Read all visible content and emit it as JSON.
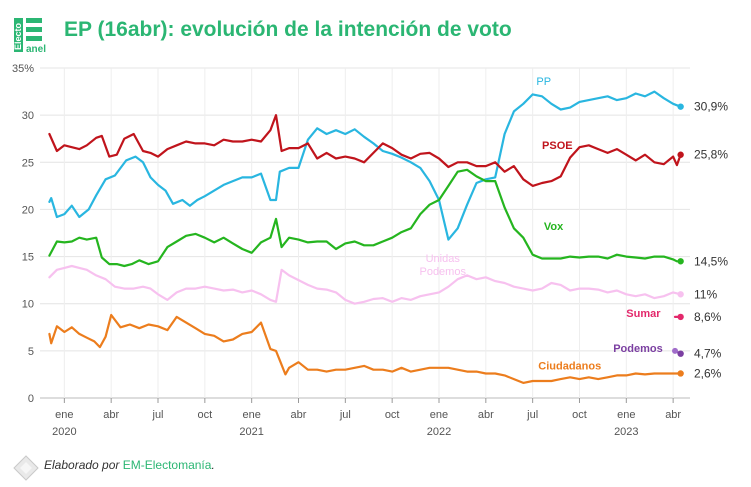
{
  "header": {
    "logo_text_1": "Electo",
    "logo_text_2": "anel",
    "title": "EP (16abr): evolución de la intención de voto"
  },
  "footer": {
    "prefix": "Elaborado por ",
    "source": "EM-Electomanía",
    "suffix": "."
  },
  "chart_data": {
    "type": "line",
    "title": "EP (16abr): evolución de la intención de voto",
    "xlabel": "",
    "ylabel": "",
    "x_range": [
      2019.87,
      2023.34
    ],
    "ylim": [
      0,
      35
    ],
    "y_ticks": [
      0,
      5,
      10,
      15,
      20,
      25,
      30,
      35
    ],
    "y_tick_labels": [
      "0",
      "5",
      "10",
      "15",
      "20",
      "25",
      "30",
      "35%"
    ],
    "x_ticks": [
      {
        "x": 2020.0,
        "label": "ene",
        "year": "2020"
      },
      {
        "x": 2020.25,
        "label": "abr",
        "year": ""
      },
      {
        "x": 2020.5,
        "label": "jul",
        "year": ""
      },
      {
        "x": 2020.75,
        "label": "oct",
        "year": ""
      },
      {
        "x": 2021.0,
        "label": "ene",
        "year": "2021"
      },
      {
        "x": 2021.25,
        "label": "abr",
        "year": ""
      },
      {
        "x": 2021.5,
        "label": "jul",
        "year": ""
      },
      {
        "x": 2021.75,
        "label": "oct",
        "year": ""
      },
      {
        "x": 2022.0,
        "label": "ene",
        "year": "2022"
      },
      {
        "x": 2022.25,
        "label": "abr",
        "year": ""
      },
      {
        "x": 2022.5,
        "label": "jul",
        "year": ""
      },
      {
        "x": 2022.75,
        "label": "oct",
        "year": ""
      },
      {
        "x": 2023.0,
        "label": "ene",
        "year": "2023"
      },
      {
        "x": 2023.25,
        "label": "abr",
        "year": ""
      }
    ],
    "grid": true,
    "series": [
      {
        "name": "PP",
        "label": "PP",
        "color": "#29b6e0",
        "final": "30,9%",
        "x": [
          2019.92,
          2019.93,
          2019.96,
          2020.0,
          2020.04,
          2020.08,
          2020.13,
          2020.17,
          2020.22,
          2020.27,
          2020.33,
          2020.38,
          2020.42,
          2020.46,
          2020.5,
          2020.54,
          2020.58,
          2020.63,
          2020.67,
          2020.71,
          2020.75,
          2020.8,
          2020.85,
          2020.9,
          2020.95,
          2021.0,
          2021.05,
          2021.1,
          2021.13,
          2021.15,
          2021.2,
          2021.25,
          2021.3,
          2021.35,
          2021.4,
          2021.45,
          2021.5,
          2021.55,
          2021.6,
          2021.65,
          2021.7,
          2021.75,
          2021.8,
          2021.85,
          2021.9,
          2021.95,
          2022.0,
          2022.05,
          2022.1,
          2022.15,
          2022.2,
          2022.25,
          2022.3,
          2022.35,
          2022.4,
          2022.45,
          2022.5,
          2022.55,
          2022.6,
          2022.65,
          2022.7,
          2022.75,
          2022.8,
          2022.85,
          2022.9,
          2022.95,
          2023.0,
          2023.05,
          2023.1,
          2023.15,
          2023.2,
          2023.25,
          2023.29
        ],
        "y": [
          20.8,
          21.2,
          19.2,
          19.5,
          20.4,
          19.2,
          20.0,
          21.5,
          23.2,
          23.6,
          25.2,
          25.6,
          25.0,
          23.4,
          22.6,
          22.0,
          20.6,
          21.0,
          20.4,
          21.0,
          21.4,
          22.0,
          22.6,
          23.0,
          23.4,
          23.4,
          23.8,
          21.0,
          21.0,
          24.0,
          24.4,
          24.4,
          27.4,
          28.6,
          28.0,
          28.4,
          28.0,
          28.5,
          27.7,
          27.0,
          26.2,
          25.9,
          25.5,
          25.0,
          24.4,
          23.0,
          21.0,
          16.8,
          18.0,
          20.5,
          22.8,
          23.2,
          23.4,
          28.0,
          30.4,
          31.2,
          32.2,
          32.0,
          31.2,
          30.6,
          30.8,
          31.4,
          31.6,
          31.8,
          32.0,
          31.6,
          31.8,
          32.3,
          32.0,
          32.5,
          31.8,
          31.2,
          30.9
        ]
      },
      {
        "name": "PSOE",
        "label": "PSOE",
        "color": "#c0141c",
        "final": "25,8%",
        "x": [
          2019.92,
          2019.96,
          2020.0,
          2020.04,
          2020.08,
          2020.12,
          2020.17,
          2020.2,
          2020.24,
          2020.28,
          2020.32,
          2020.37,
          2020.42,
          2020.46,
          2020.5,
          2020.55,
          2020.6,
          2020.65,
          2020.7,
          2020.75,
          2020.8,
          2020.85,
          2020.9,
          2020.95,
          2021.0,
          2021.05,
          2021.1,
          2021.13,
          2021.16,
          2021.2,
          2021.25,
          2021.3,
          2021.35,
          2021.4,
          2021.45,
          2021.5,
          2021.55,
          2021.6,
          2021.65,
          2021.7,
          2021.75,
          2021.8,
          2021.85,
          2021.9,
          2021.95,
          2022.0,
          2022.05,
          2022.1,
          2022.15,
          2022.2,
          2022.25,
          2022.3,
          2022.35,
          2022.4,
          2022.45,
          2022.5,
          2022.55,
          2022.6,
          2022.65,
          2022.7,
          2022.75,
          2022.8,
          2022.85,
          2022.9,
          2022.95,
          2023.0,
          2023.05,
          2023.1,
          2023.15,
          2023.2,
          2023.25,
          2023.27,
          2023.29
        ],
        "y": [
          28.0,
          26.2,
          26.8,
          26.6,
          26.4,
          26.8,
          27.6,
          27.8,
          25.6,
          25.8,
          27.5,
          28.0,
          26.2,
          26.0,
          25.6,
          26.4,
          26.8,
          27.2,
          27.0,
          27.0,
          26.8,
          27.4,
          27.2,
          27.2,
          27.4,
          27.2,
          28.4,
          30.0,
          26.2,
          26.5,
          26.5,
          27.0,
          25.4,
          26.0,
          25.4,
          25.6,
          25.4,
          25.0,
          26.0,
          27.0,
          26.5,
          25.8,
          25.4,
          25.9,
          26.0,
          25.4,
          24.5,
          25.0,
          25.0,
          24.6,
          24.6,
          25.0,
          24.0,
          24.6,
          23.2,
          22.5,
          22.8,
          23.0,
          23.5,
          25.5,
          26.6,
          26.8,
          26.4,
          26.0,
          26.4,
          25.8,
          25.2,
          25.8,
          25.0,
          24.8,
          25.6,
          24.7,
          25.8
        ]
      },
      {
        "name": "Vox",
        "label": "Vox",
        "color": "#25b51f",
        "final": "14,5%",
        "x": [
          2019.92,
          2019.96,
          2020.0,
          2020.04,
          2020.08,
          2020.12,
          2020.17,
          2020.2,
          2020.24,
          2020.28,
          2020.32,
          2020.36,
          2020.4,
          2020.45,
          2020.5,
          2020.55,
          2020.6,
          2020.65,
          2020.7,
          2020.75,
          2020.8,
          2020.85,
          2020.9,
          2020.95,
          2021.0,
          2021.05,
          2021.1,
          2021.13,
          2021.16,
          2021.2,
          2021.25,
          2021.3,
          2021.35,
          2021.4,
          2021.45,
          2021.5,
          2021.55,
          2021.6,
          2021.65,
          2021.7,
          2021.75,
          2021.8,
          2021.85,
          2021.9,
          2021.95,
          2022.0,
          2022.05,
          2022.1,
          2022.15,
          2022.2,
          2022.25,
          2022.3,
          2022.35,
          2022.4,
          2022.45,
          2022.5,
          2022.55,
          2022.6,
          2022.65,
          2022.7,
          2022.75,
          2022.8,
          2022.85,
          2022.9,
          2022.95,
          2023.0,
          2023.05,
          2023.1,
          2023.15,
          2023.2,
          2023.25,
          2023.27,
          2023.29
        ],
        "y": [
          15.1,
          16.6,
          16.5,
          16.6,
          17.0,
          16.8,
          17.0,
          14.9,
          14.2,
          14.2,
          14.0,
          14.2,
          14.6,
          14.2,
          14.5,
          16.0,
          16.6,
          17.2,
          17.4,
          17.0,
          16.5,
          17.0,
          16.4,
          15.8,
          15.4,
          16.5,
          17.0,
          19.0,
          16.0,
          17.0,
          16.8,
          16.5,
          16.6,
          16.6,
          15.8,
          16.4,
          16.6,
          16.2,
          16.2,
          16.6,
          17.0,
          17.6,
          18.0,
          19.5,
          20.5,
          21.0,
          22.5,
          24.0,
          24.2,
          23.5,
          23.0,
          23.0,
          20.2,
          18.0,
          17.0,
          15.2,
          14.8,
          14.8,
          14.8,
          15.0,
          14.9,
          15.0,
          15.0,
          14.8,
          15.2,
          15.0,
          14.9,
          14.8,
          15.0,
          15.0,
          14.7,
          14.5,
          14.5
        ]
      },
      {
        "name": "Unidas Podemos",
        "label": "Unidas\nPodemos",
        "color": "#f7c1ef",
        "final": "11%",
        "x": [
          2019.92,
          2019.96,
          2020.0,
          2020.04,
          2020.08,
          2020.12,
          2020.17,
          2020.22,
          2020.27,
          2020.32,
          2020.37,
          2020.42,
          2020.46,
          2020.5,
          2020.55,
          2020.6,
          2020.65,
          2020.7,
          2020.75,
          2020.8,
          2020.85,
          2020.9,
          2020.95,
          2021.0,
          2021.05,
          2021.1,
          2021.13,
          2021.16,
          2021.2,
          2021.25,
          2021.3,
          2021.35,
          2021.4,
          2021.45,
          2021.5,
          2021.55,
          2021.6,
          2021.65,
          2021.7,
          2021.75,
          2021.8,
          2021.85,
          2021.9,
          2021.95,
          2022.0,
          2022.05,
          2022.1,
          2022.15,
          2022.2,
          2022.25,
          2022.3,
          2022.35,
          2022.4,
          2022.45,
          2022.5,
          2022.55,
          2022.6,
          2022.65,
          2022.7,
          2022.75,
          2022.8,
          2022.85,
          2022.9,
          2022.95,
          2023.0,
          2023.05,
          2023.1,
          2023.15,
          2023.2,
          2023.25,
          2023.29
        ],
        "y": [
          12.8,
          13.6,
          13.8,
          14.0,
          13.8,
          13.6,
          13.0,
          12.6,
          11.8,
          11.6,
          11.6,
          11.8,
          11.6,
          11.0,
          10.4,
          11.2,
          11.6,
          11.6,
          11.8,
          11.6,
          11.4,
          11.5,
          11.2,
          11.4,
          11.0,
          10.4,
          10.2,
          13.6,
          13.0,
          12.5,
          12.0,
          11.6,
          11.5,
          11.2,
          10.4,
          10.0,
          10.2,
          10.5,
          10.6,
          10.2,
          10.6,
          10.4,
          10.8,
          11.0,
          11.2,
          11.8,
          12.6,
          13.0,
          12.6,
          12.8,
          12.4,
          12.2,
          11.8,
          11.6,
          11.4,
          11.6,
          12.2,
          12.0,
          11.4,
          11.6,
          11.6,
          11.5,
          11.2,
          11.4,
          11.0,
          10.8,
          11.0,
          10.6,
          10.8,
          11.2,
          11.0
        ]
      },
      {
        "name": "Ciudadanos",
        "label": "Ciudadanos",
        "color": "#ec7d1d",
        "final": "2,6%",
        "x": [
          2019.92,
          2019.93,
          2019.96,
          2020.0,
          2020.04,
          2020.08,
          2020.12,
          2020.16,
          2020.19,
          2020.22,
          2020.25,
          2020.3,
          2020.35,
          2020.4,
          2020.45,
          2020.5,
          2020.55,
          2020.6,
          2020.65,
          2020.7,
          2020.75,
          2020.8,
          2020.85,
          2020.9,
          2020.95,
          2021.0,
          2021.05,
          2021.1,
          2021.13,
          2021.15,
          2021.18,
          2021.2,
          2021.25,
          2021.3,
          2021.35,
          2021.4,
          2021.45,
          2021.5,
          2021.55,
          2021.6,
          2021.65,
          2021.7,
          2021.75,
          2021.8,
          2021.85,
          2021.9,
          2021.95,
          2022.0,
          2022.05,
          2022.1,
          2022.15,
          2022.2,
          2022.25,
          2022.3,
          2022.35,
          2022.4,
          2022.45,
          2022.5,
          2022.55,
          2022.6,
          2022.65,
          2022.7,
          2022.75,
          2022.8,
          2022.85,
          2022.9,
          2022.95,
          2023.0,
          2023.05,
          2023.1,
          2023.15,
          2023.2,
          2023.25,
          2023.29
        ],
        "y": [
          6.8,
          5.8,
          7.6,
          7.0,
          7.5,
          6.8,
          6.4,
          6.0,
          5.4,
          6.5,
          8.8,
          7.5,
          7.8,
          7.4,
          7.8,
          7.6,
          7.2,
          8.6,
          8.0,
          7.4,
          6.8,
          6.6,
          6.0,
          6.2,
          6.8,
          7.0,
          8.0,
          5.2,
          5.0,
          4.0,
          2.5,
          3.2,
          3.8,
          3.0,
          3.0,
          2.8,
          3.0,
          3.0,
          3.2,
          3.4,
          3.0,
          3.0,
          2.8,
          3.2,
          2.8,
          3.0,
          3.2,
          3.2,
          3.2,
          3.0,
          2.8,
          2.8,
          2.6,
          2.6,
          2.4,
          2.0,
          1.6,
          1.8,
          1.8,
          1.8,
          2.0,
          2.2,
          2.0,
          2.2,
          2.0,
          2.2,
          2.4,
          2.4,
          2.6,
          2.5,
          2.6,
          2.6,
          2.6,
          2.6
        ]
      },
      {
        "name": "Sumar",
        "label": "Sumar",
        "color": "#e3286b",
        "final": "8,6%",
        "x": [
          2023.26,
          2023.29
        ],
        "y": [
          8.6,
          8.6
        ]
      },
      {
        "name": "Podemos",
        "label": "Podemos",
        "color": "#7b3fa1",
        "final": "4,7%",
        "x": [
          2023.26,
          2023.29
        ],
        "y": [
          5.0,
          4.7
        ]
      }
    ]
  }
}
